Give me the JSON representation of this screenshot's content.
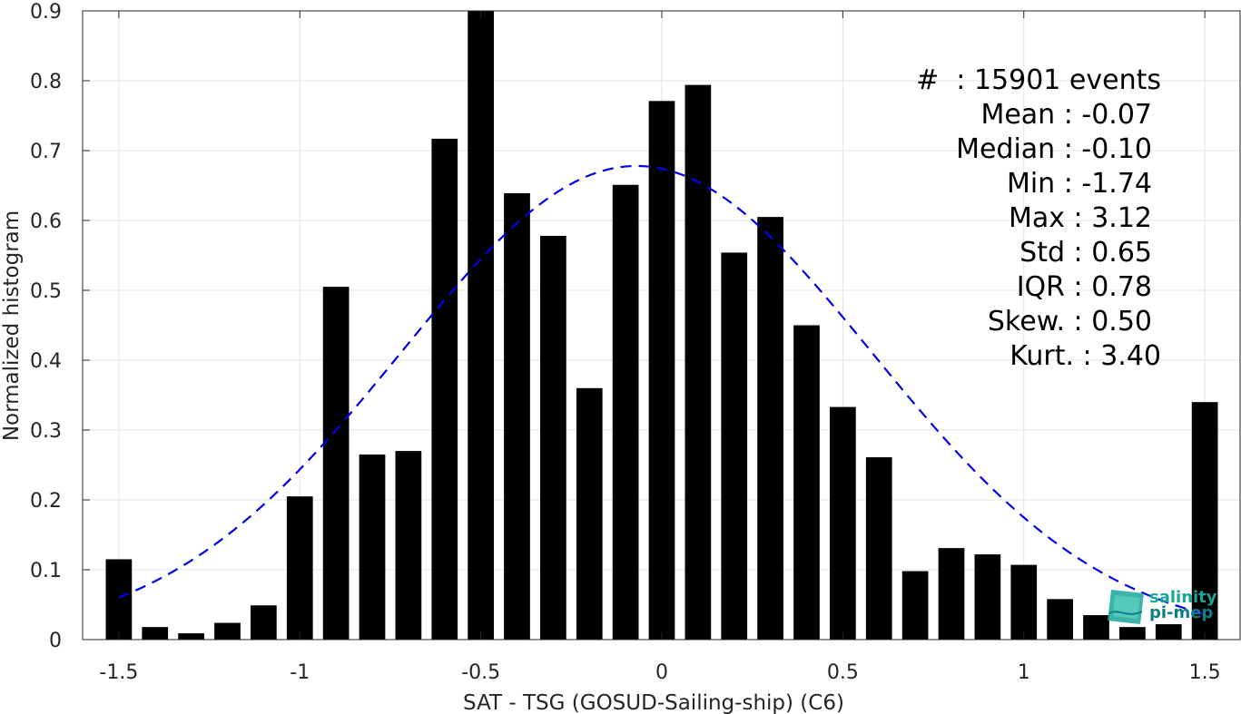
{
  "chart_data": {
    "type": "bar",
    "xlabel": "SAT - TSG (GOSUD-Sailing-ship) (C6)",
    "ylabel": "Normalized histogram",
    "xlim": [
      -1.6,
      1.6
    ],
    "ylim": [
      0,
      0.9
    ],
    "xticks": [
      -1.5,
      -1,
      -0.5,
      0,
      0.5,
      1,
      1.5
    ],
    "yticks": [
      0,
      0.1,
      0.2,
      0.3,
      0.4,
      0.5,
      0.6,
      0.7,
      0.8,
      0.9
    ],
    "grid": true,
    "bar_width": 0.072,
    "x": [
      -1.5,
      -1.4,
      -1.3,
      -1.2,
      -1.1,
      -1.0,
      -0.9,
      -0.8,
      -0.7,
      -0.6,
      -0.5,
      -0.4,
      -0.3,
      -0.2,
      -0.1,
      0.0,
      0.1,
      0.2,
      0.3,
      0.4,
      0.5,
      0.6,
      0.7,
      0.8,
      0.9,
      1.0,
      1.1,
      1.2,
      1.3,
      1.4,
      1.5
    ],
    "values": [
      0.115,
      0.018,
      0.009,
      0.024,
      0.049,
      0.205,
      0.505,
      0.265,
      0.27,
      0.717,
      0.9,
      0.639,
      0.578,
      0.36,
      0.651,
      0.771,
      0.794,
      0.554,
      0.605,
      0.45,
      0.333,
      0.261,
      0.098,
      0.131,
      0.122,
      0.107,
      0.058,
      0.035,
      0.018,
      0.022,
      0.34
    ],
    "fit_curve": {
      "style": "dashed",
      "color": "#0000ee",
      "mean": -0.07,
      "std": 0.65,
      "peak": 0.678,
      "x_range": [
        -1.5,
        1.5
      ]
    },
    "bar_color": "#000000"
  },
  "stats": {
    "lines": [
      "#  : 15901 events",
      "Mean : -0.07",
      "Median : -0.10",
      "Min : -1.74",
      "Max : 3.12",
      "Std : 0.65",
      "IQR : 0.78",
      "Skew. : 0.50",
      "Kurt. : 3.40"
    ]
  },
  "logo": {
    "line1": "salinity",
    "line2": "pi-mep"
  }
}
